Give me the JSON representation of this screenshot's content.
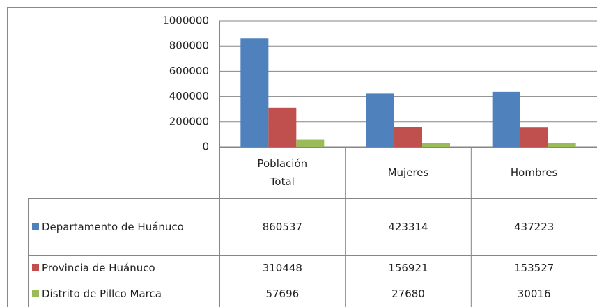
{
  "chart_data": {
    "type": "bar",
    "categories": [
      "Población Total",
      "Mujeres",
      "Hombres"
    ],
    "series": [
      {
        "name": "Departamento de Huánuco",
        "color": "#4f81bd",
        "values": [
          860537,
          423314,
          437223
        ]
      },
      {
        "name": "Provincia de Huánuco",
        "color": "#c0504d",
        "values": [
          310448,
          156921,
          153527
        ]
      },
      {
        "name": "Distrito de Pillco Marca",
        "color": "#9bbb59",
        "values": [
          57696,
          27680,
          30016
        ]
      }
    ],
    "ylim": [
      0,
      1000000
    ],
    "yticks": [
      0,
      200000,
      400000,
      600000,
      800000,
      1000000
    ],
    "grid": true,
    "data_table": true
  }
}
